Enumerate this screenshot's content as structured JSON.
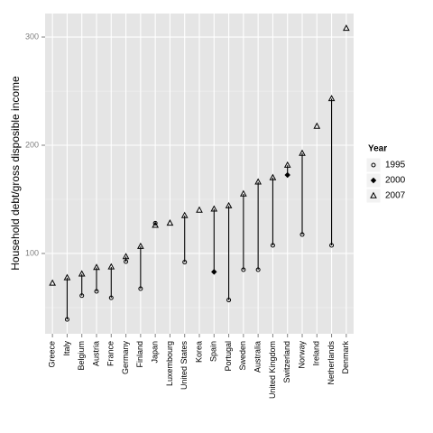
{
  "chart_data": {
    "type": "range-dot",
    "y_label": "Household debt/gross disposible income",
    "legend_title": "Year",
    "categories": [
      "Greece",
      "Italy",
      "Belgium",
      "Austria",
      "France",
      "Germany",
      "Finland",
      "Japan",
      "Luxembourg",
      "United States",
      "Korea",
      "Spain",
      "Portugal",
      "Sweden",
      "Australia",
      "United Kingdom",
      "Switzerland",
      "Norway",
      "Ireland",
      "Netherlands",
      "Denmark"
    ],
    "series": [
      {
        "name": "1995",
        "marker": "circle",
        "color": "#000000",
        "values": [
          null,
          39,
          61,
          65,
          59,
          92.5,
          67.5,
          128,
          null,
          92,
          null,
          null,
          57,
          85,
          85,
          107.5,
          null,
          117.5,
          null,
          107.5,
          null
        ]
      },
      {
        "name": "2000",
        "marker": "diamond",
        "color": "#000000",
        "values": [
          null,
          null,
          null,
          null,
          null,
          null,
          null,
          null,
          null,
          null,
          null,
          83,
          null,
          null,
          null,
          null,
          172.5,
          null,
          null,
          null,
          null
        ]
      },
      {
        "name": "2007",
        "marker": "triangle",
        "color": "#000000",
        "values": [
          72.5,
          77.5,
          81,
          87,
          87.5,
          97,
          106.5,
          126,
          128,
          135,
          140,
          141,
          144,
          155,
          166,
          170,
          181.5,
          192.5,
          217.5,
          243,
          308
        ]
      }
    ],
    "ylim": [
      25.8,
      321.7
    ],
    "yticks": [
      100,
      200,
      300
    ],
    "grid": true
  }
}
